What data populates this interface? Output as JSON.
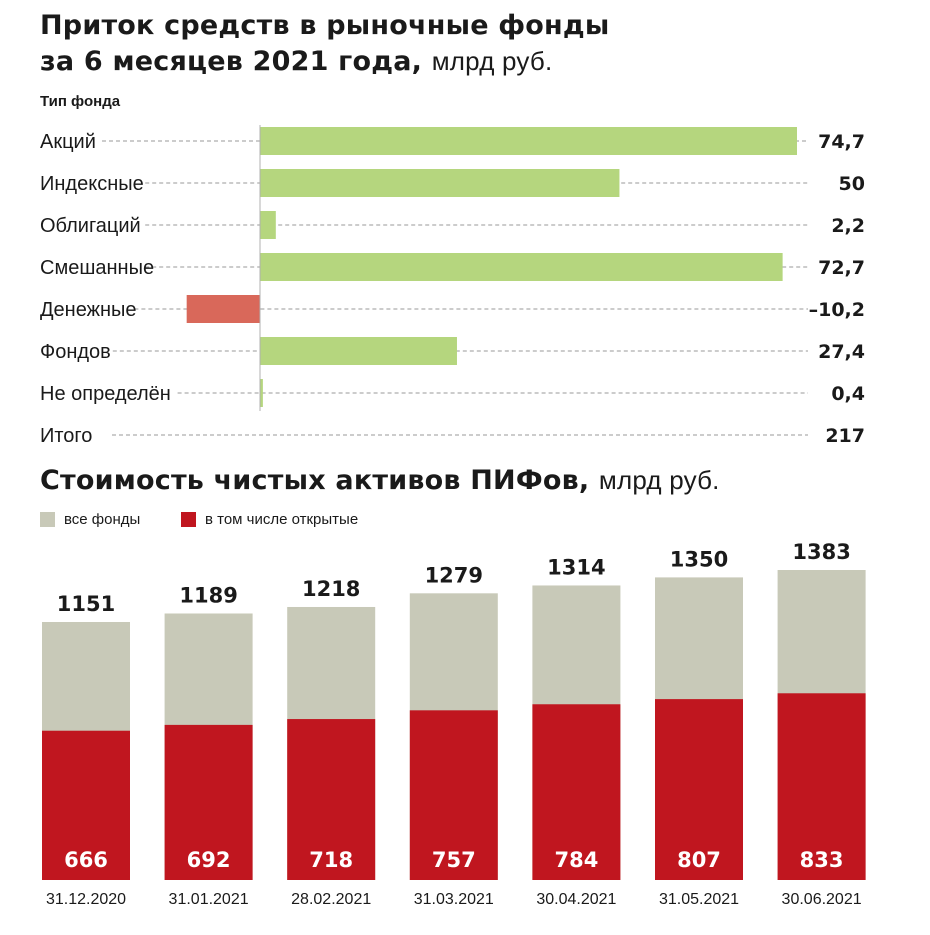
{
  "chart1": {
    "title_line1": "Приток средств в рыночные фонды",
    "title_line2": "за 6 месяцев 2021 года,",
    "title_unit": "млрд руб.",
    "axis_title": "Тип фонда"
  },
  "chart2": {
    "title": "Стоимость чистых активов ПИФов,",
    "title_unit": "млрд руб.",
    "legend_all": "все фонды",
    "legend_open": "в том числе открытые"
  },
  "colors": {
    "positive": "#b5d67e",
    "negative": "#d9685a",
    "all_funds": "#c8c9b8",
    "open_funds": "#c0161f"
  },
  "chart_data": [
    {
      "type": "bar",
      "orientation": "horizontal",
      "title": "Приток средств в рыночные фонды за 6 месяцев 2021 года, млрд руб.",
      "ylabel": "Тип фонда",
      "categories": [
        "Акций",
        "Индексные",
        "Облигаций",
        "Смешанные",
        "Денежные",
        "Фондов",
        "Не определён"
      ],
      "values": [
        74.7,
        50,
        2.2,
        72.7,
        -10.2,
        27.4,
        0.4
      ],
      "value_labels": [
        "74,7",
        "50",
        "2,2",
        "72,7",
        "–10,2",
        "27,4",
        "0,4"
      ],
      "total": {
        "label": "Итого",
        "value": 217,
        "value_label": "217"
      },
      "xlim": [
        -10.2,
        74.7
      ]
    },
    {
      "type": "bar",
      "title": "Стоимость чистых активов ПИФов, млрд руб.",
      "categories": [
        "31.12.2020",
        "31.01.2021",
        "28.02.2021",
        "31.03.2021",
        "30.04.2021",
        "31.05.2021",
        "30.06.2021"
      ],
      "series": [
        {
          "name": "все фонды",
          "values": [
            1151,
            1189,
            1218,
            1279,
            1314,
            1350,
            1383
          ]
        },
        {
          "name": "в том числе открытые",
          "values": [
            666,
            692,
            718,
            757,
            784,
            807,
            833
          ]
        }
      ],
      "ylim": [
        0,
        1383
      ]
    }
  ]
}
